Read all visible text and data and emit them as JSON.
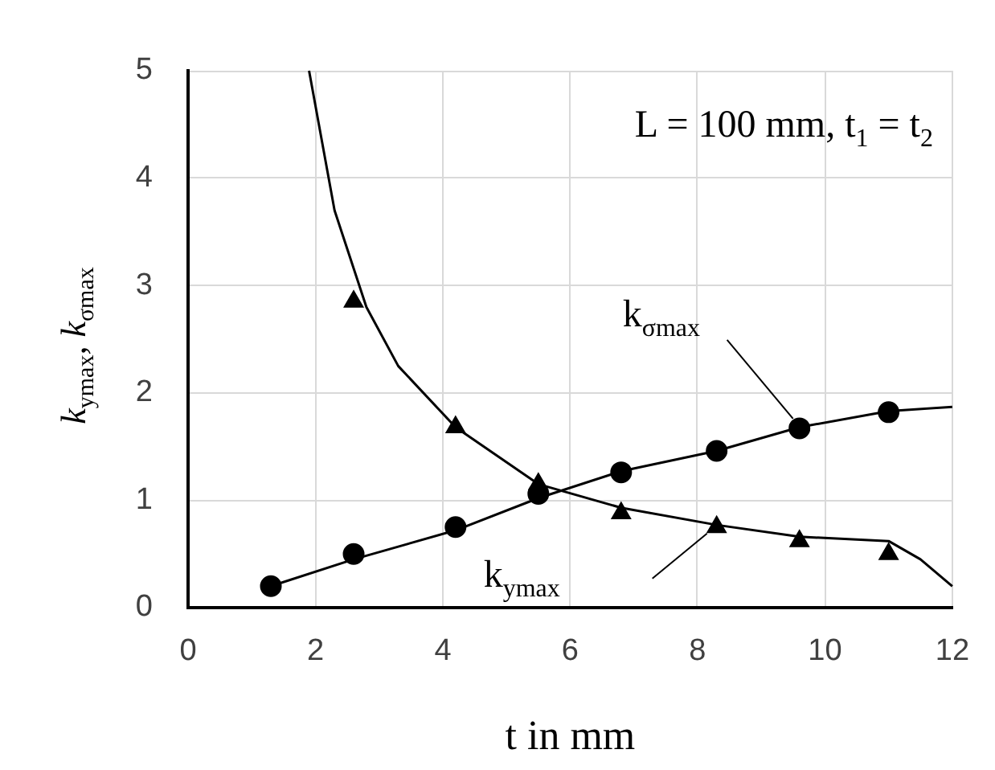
{
  "chart_data": {
    "type": "scatter",
    "xlabel": "t in mm",
    "ylabel": "k$_{ymax}$, k$_{σmax}$",
    "annotations": [
      "L = 100 mm, t$_{1}$ = t$_{2}$"
    ],
    "xlim": [
      0,
      12
    ],
    "xticks": [
      0,
      2,
      4,
      6,
      8,
      10,
      12
    ],
    "ylim": [
      0,
      5
    ],
    "yticks": [
      0,
      1,
      2,
      3,
      4,
      5
    ],
    "grid": true,
    "series": [
      {
        "name": "k$_{σmax}$",
        "marker": "circle",
        "color": "#000000",
        "x": [
          1.3,
          2.6,
          4.2,
          5.5,
          6.8,
          8.3,
          9.6,
          11
        ],
        "values": [
          0.2,
          0.5,
          0.75,
          1.06,
          1.26,
          1.46,
          1.67,
          1.82
        ]
      },
      {
        "name": "k$_{ymax}$",
        "marker": "triangle",
        "color": "#000000",
        "x": [
          2.6,
          4.2,
          5.5,
          6.8,
          8.3,
          9.6,
          11
        ],
        "values": [
          2.85,
          1.68,
          1.15,
          0.88,
          0.75,
          0.62,
          0.5
        ]
      },
      {
        "type": "line",
        "marker": "none",
        "color": "#000000",
        "x": [
          1.3,
          2.6,
          4.2,
          5.5,
          6.8,
          8.3,
          9.6,
          11,
          12
        ],
        "values": [
          0.2,
          0.45,
          0.72,
          1.02,
          1.27,
          1.46,
          1.68,
          1.83,
          1.87
        ]
      },
      {
        "type": "line",
        "marker": "none",
        "color": "#000000",
        "x": [
          1.9,
          2.3,
          2.8,
          3.3,
          4.2,
          5.5,
          6.8,
          8.3,
          9.6,
          11,
          11.5,
          12
        ],
        "values": [
          5,
          3.7,
          2.8,
          2.25,
          1.68,
          1.15,
          0.93,
          0.77,
          0.66,
          0.62,
          0.45,
          0.2
        ]
      }
    ]
  }
}
